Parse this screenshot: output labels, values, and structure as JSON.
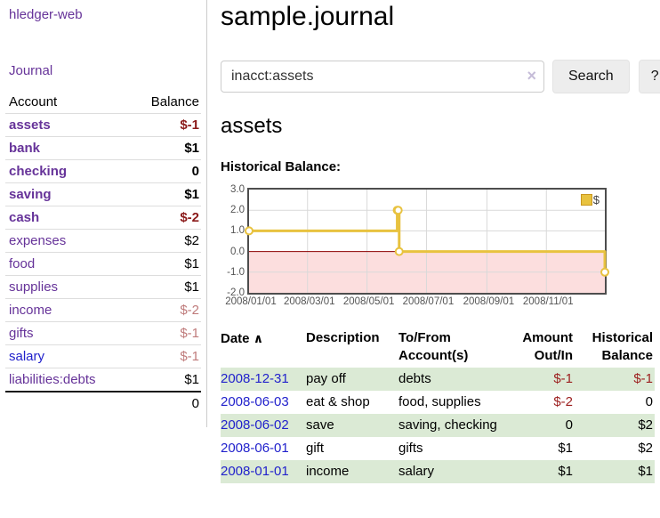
{
  "app": {
    "brand": "hledger-web",
    "nav_journal": "Journal"
  },
  "sidebar": {
    "headers": {
      "account": "Account",
      "balance": "Balance"
    },
    "accounts": [
      {
        "name": "assets",
        "balance": "$-1"
      },
      {
        "name": "bank",
        "balance": "$1"
      },
      {
        "name": "checking",
        "balance": "0"
      },
      {
        "name": "saving",
        "balance": "$1"
      },
      {
        "name": "cash",
        "balance": "$-2"
      },
      {
        "name": "expenses",
        "balance": "$2"
      },
      {
        "name": "food",
        "balance": "$1"
      },
      {
        "name": "supplies",
        "balance": "$1"
      },
      {
        "name": "income",
        "balance": "$-2"
      },
      {
        "name": "gifts",
        "balance": "$-1"
      },
      {
        "name": "salary",
        "balance": "$-1"
      },
      {
        "name": "liabilities:debts",
        "balance": "$1"
      }
    ],
    "total": "0"
  },
  "main": {
    "title": "sample.journal",
    "search": {
      "value": "inacct:assets",
      "clear_icon": "×",
      "button_label": "Search",
      "help_label": "?"
    },
    "section_title": "assets",
    "chart_title": "Historical Balance:"
  },
  "chart_data": {
    "type": "line",
    "style": "step",
    "title": "Historical Balance:",
    "legend": "$",
    "legend_position": "top-right",
    "grid": true,
    "series": [
      {
        "name": "$",
        "points": [
          {
            "date": "2008-01-01",
            "value": 1
          },
          {
            "date": "2008-06-01",
            "value": 2
          },
          {
            "date": "2008-06-02",
            "value": 2
          },
          {
            "date": "2008-06-03",
            "value": 0
          },
          {
            "date": "2008-12-31",
            "value": -1
          }
        ]
      }
    ],
    "x_range": [
      "2008-01-01",
      "2008-12-31"
    ],
    "x_ticks": [
      {
        "label": "2008/01/01",
        "date": "2008-01-01"
      },
      {
        "label": "2008/03/01",
        "date": "2008-03-01"
      },
      {
        "label": "2008/05/01",
        "date": "2008-05-01"
      },
      {
        "label": "2008/07/01",
        "date": "2008-07-01"
      },
      {
        "label": "2008/09/01",
        "date": "2008-09-01"
      },
      {
        "label": "2008/11/01",
        "date": "2008-11-01"
      }
    ],
    "y_ticks": [
      "3.0",
      "2.0",
      "1.0",
      "0.0",
      "-1.0",
      "-2.0"
    ],
    "ylim": [
      -2,
      3
    ],
    "colors": {
      "line": "#e8c23f",
      "marker_fill": "#ffffff",
      "negative_region": "#fcdede",
      "zero_line": "#8b0000",
      "grid": "#d9d9d9",
      "border": "#4d4d4d"
    }
  },
  "register": {
    "headers": {
      "date": "Date",
      "sort_icon": "∧",
      "description": "Description",
      "tofrom": "To/From Account(s)",
      "amount": "Amount Out/In",
      "balance": "Historical Balance"
    },
    "rows": [
      {
        "date": "2008-12-31",
        "description": "pay off",
        "tofrom": "debts",
        "amount": "$-1",
        "balance": "$-1"
      },
      {
        "date": "2008-06-03",
        "description": "eat & shop",
        "tofrom": "food, supplies",
        "amount": "$-2",
        "balance": "0"
      },
      {
        "date": "2008-06-02",
        "description": "save",
        "tofrom": "saving, checking",
        "amount": "0",
        "balance": "$2"
      },
      {
        "date": "2008-06-01",
        "description": "gift",
        "tofrom": "gifts",
        "amount": "$1",
        "balance": "$2"
      },
      {
        "date": "2008-01-01",
        "description": "income",
        "tofrom": "salary",
        "amount": "$1",
        "balance": "$1"
      }
    ]
  }
}
